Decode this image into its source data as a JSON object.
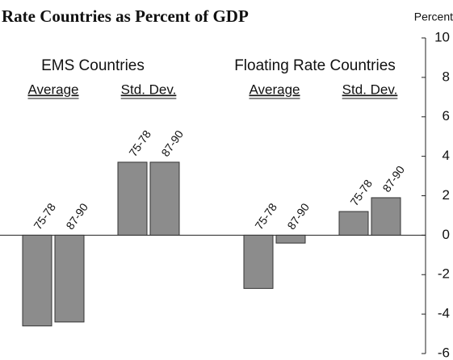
{
  "chart_data": {
    "type": "bar",
    "title": "Rate Countries as Percent of GDP",
    "y_axis_label": "Percent",
    "color": "#8c8c8c",
    "groups": [
      {
        "name": "EMS Countries",
        "subgroups": [
          {
            "name": "Average",
            "categories": [
              "75-78",
              "87-90"
            ],
            "values": [
              -4.6,
              -4.4
            ]
          },
          {
            "name": "Std. Dev.",
            "categories": [
              "75-78",
              "87-90"
            ],
            "values": [
              3.7,
              3.7
            ]
          }
        ]
      },
      {
        "name": "Floating Rate Countries",
        "subgroups": [
          {
            "name": "Average",
            "categories": [
              "75-78",
              "87-90"
            ],
            "values": [
              -2.7,
              -0.4
            ]
          },
          {
            "name": "Std. Dev.",
            "categories": [
              "75-78",
              "87-90"
            ],
            "values": [
              1.2,
              1.9
            ]
          }
        ]
      }
    ],
    "ylim": [
      -6,
      10
    ],
    "yticks": [
      10,
      8,
      6,
      4,
      2,
      0,
      -2,
      -4,
      -6
    ]
  }
}
